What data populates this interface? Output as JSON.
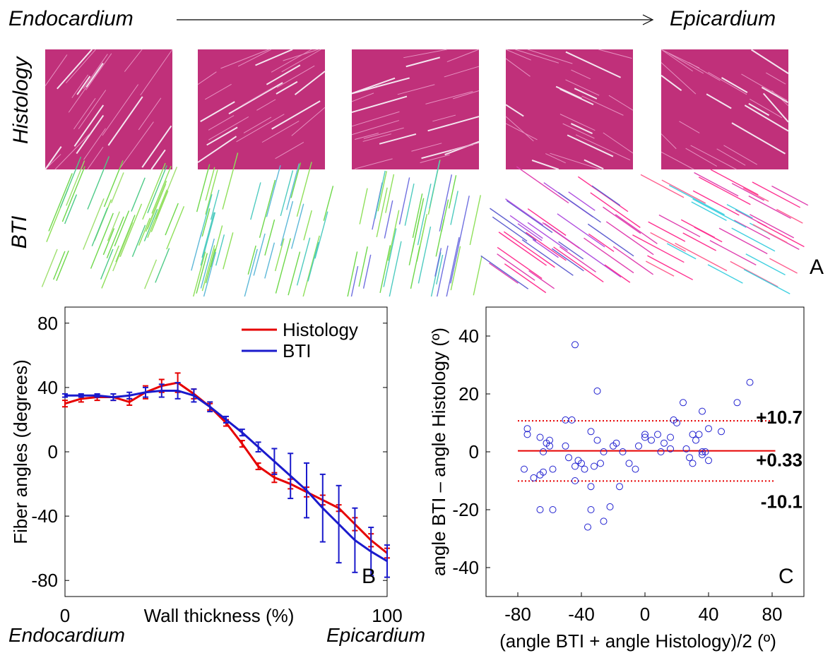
{
  "header": {
    "left_label": "Endocardium",
    "right_label": "Epicardium",
    "row_labels": [
      "Histology",
      "BTI"
    ],
    "panel_letter": "A"
  },
  "panelA": {
    "columns": [
      {
        "bti_colors": [
          "#6ed84a",
          "#8fe05a",
          "#a0e070",
          "#4ecb88"
        ],
        "bti_angle": 68,
        "fiber_angle": 55
      },
      {
        "bti_colors": [
          "#6ed84a",
          "#8fe05a",
          "#4ecbc0",
          "#5db8d8"
        ],
        "bti_angle": 75,
        "fiber_angle": 30
      },
      {
        "bti_colors": [
          "#6ed84a",
          "#7070e0",
          "#4ecbc0",
          "#8fe05a"
        ],
        "bti_angle": 78,
        "fiber_angle": 15
      },
      {
        "bti_colors": [
          "#e040b0",
          "#ff3090",
          "#b050e0",
          "#6060d0"
        ],
        "bti_angle": -35,
        "fiber_angle": -25
      },
      {
        "bti_colors": [
          "#ff3090",
          "#e040b0",
          "#ff6090",
          "#40d0e0"
        ],
        "bti_angle": -28,
        "fiber_angle": -30
      }
    ]
  },
  "chart_data": [
    {
      "type": "line",
      "panel": "B",
      "title": "",
      "xlabel": "Wall thickness (%)",
      "ylabel": "Fiber angles (degrees)",
      "xlim": [
        0,
        100
      ],
      "ylim": [
        -90,
        90
      ],
      "xticks": [
        "0",
        "100"
      ],
      "yticks": [
        80,
        40,
        0,
        -40,
        -80
      ],
      "legend": "top-right",
      "x_end_labels": {
        "left": "Endocardium",
        "right": "Epicardium"
      },
      "series": [
        {
          "name": "Histology",
          "color": "#e60000",
          "x": [
            0,
            5,
            10,
            15,
            20,
            25,
            30,
            35,
            40,
            45,
            50,
            55,
            60,
            65,
            70,
            75,
            80,
            85,
            90,
            95,
            100
          ],
          "y": [
            30,
            33,
            34,
            34,
            31,
            37,
            41,
            43,
            36,
            28,
            18,
            5,
            -9,
            -16,
            -20,
            -25,
            -30,
            -35,
            -45,
            -55,
            -63
          ],
          "err": [
            2,
            2,
            2,
            2,
            2,
            4,
            4,
            6,
            3,
            2,
            2,
            2,
            2,
            3,
            3,
            3,
            3,
            2,
            4,
            4,
            3
          ]
        },
        {
          "name": "BTI",
          "color": "#1a1acc",
          "x": [
            0,
            5,
            10,
            15,
            20,
            25,
            30,
            35,
            40,
            45,
            50,
            55,
            60,
            65,
            70,
            75,
            80,
            85,
            90,
            95,
            100
          ],
          "y": [
            35,
            35,
            35,
            34,
            35,
            37,
            38,
            38,
            35,
            28,
            20,
            12,
            3,
            -6,
            -15,
            -24,
            -35,
            -45,
            -55,
            -62,
            -68
          ],
          "err": [
            1,
            1,
            1,
            2,
            2,
            3,
            4,
            5,
            4,
            3,
            2,
            2,
            3,
            8,
            14,
            17,
            21,
            24,
            20,
            15,
            10
          ]
        }
      ]
    },
    {
      "type": "scatter",
      "panel": "C",
      "title": "",
      "xlabel": "(angle BTI + angle Histology)/2 (º)",
      "ylabel": "angle BTI – angle Histology (º)",
      "xlim": [
        -100,
        100
      ],
      "ylim": [
        -50,
        50
      ],
      "xticks": [
        -80,
        -40,
        0,
        40,
        80
      ],
      "yticks": [
        40,
        20,
        0,
        -20,
        -40
      ],
      "hlines": [
        {
          "y": 10.7,
          "label": "+10.7",
          "style": "dotted"
        },
        {
          "y": 0.33,
          "label": "+0.33",
          "style": "solid"
        },
        {
          "y": -10.1,
          "label": "-10.1",
          "style": "dotted"
        }
      ],
      "points": [
        [
          -76,
          -6
        ],
        [
          -74,
          8
        ],
        [
          -74,
          6
        ],
        [
          -70,
          -9
        ],
        [
          -66,
          -8
        ],
        [
          -66,
          -20
        ],
        [
          -66,
          5
        ],
        [
          -64,
          0
        ],
        [
          -64,
          -7
        ],
        [
          -62,
          3
        ],
        [
          -60,
          4
        ],
        [
          -60,
          2
        ],
        [
          -58,
          -20
        ],
        [
          -58,
          -6
        ],
        [
          -50,
          11
        ],
        [
          -50,
          2
        ],
        [
          -48,
          -2
        ],
        [
          -46,
          11
        ],
        [
          -44,
          -10
        ],
        [
          -44,
          -5
        ],
        [
          -44,
          37
        ],
        [
          -42,
          -3
        ],
        [
          -40,
          -4
        ],
        [
          -38,
          -6
        ],
        [
          -36,
          -26
        ],
        [
          -34,
          -20
        ],
        [
          -34,
          7
        ],
        [
          -34,
          -12
        ],
        [
          -32,
          -5
        ],
        [
          -30,
          21
        ],
        [
          -30,
          4
        ],
        [
          -28,
          -4
        ],
        [
          -26,
          -24
        ],
        [
          -26,
          0
        ],
        [
          -22,
          -19
        ],
        [
          -20,
          2
        ],
        [
          -18,
          3
        ],
        [
          -16,
          -12
        ],
        [
          -14,
          0
        ],
        [
          -10,
          -4
        ],
        [
          -6,
          -6
        ],
        [
          -4,
          2
        ],
        [
          0,
          5
        ],
        [
          0,
          6
        ],
        [
          4,
          4
        ],
        [
          8,
          6
        ],
        [
          10,
          0
        ],
        [
          12,
          3
        ],
        [
          16,
          5
        ],
        [
          16,
          1
        ],
        [
          18,
          11
        ],
        [
          20,
          10
        ],
        [
          24,
          17
        ],
        [
          26,
          1
        ],
        [
          28,
          -2
        ],
        [
          30,
          6
        ],
        [
          30,
          -4
        ],
        [
          32,
          4
        ],
        [
          34,
          6
        ],
        [
          36,
          0
        ],
        [
          36,
          -1
        ],
        [
          36,
          14
        ],
        [
          38,
          0
        ],
        [
          40,
          8
        ],
        [
          40,
          -3
        ],
        [
          48,
          7
        ],
        [
          58,
          17
        ],
        [
          66,
          24
        ]
      ]
    }
  ],
  "panel_letters": {
    "B": "B",
    "C": "C"
  }
}
